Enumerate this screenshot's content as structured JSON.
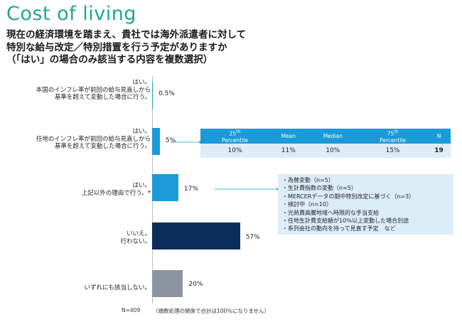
{
  "title": "Cost of living",
  "question_lines": [
    "現在の経済環境を踏まえ、貴社では海外派遣者に対して",
    "特別な給与改定／特別措置を行う予定がありますか",
    "（「はい」の場合のみ該当する内容を複数選択）"
  ],
  "chart_data": {
    "type": "bar",
    "orientation": "horizontal",
    "categories": [
      "はい。本国のインフレ率が前回の給与見直しから基準を超えて変動した場合に行う。",
      "はい。任地のインフレ率が前回の給与見直しから基準を超えて変動した場合に行う。",
      "はい。上記以外の理由で行う。*",
      "いいえ。行わない。",
      "いずれにも該当しない。"
    ],
    "category_lines": [
      [
        "はい。",
        "本国のインフレ率が前回の給与見直しから",
        "基準を超えて変動した場合に行う。"
      ],
      [
        "はい。",
        "任地のインフレ率が前回の給与見直しから",
        "基準を超えて変動した場合に行う。"
      ],
      [
        "はい。",
        "上記以外の理由で行う。*"
      ],
      [
        "いいえ。",
        "行わない。"
      ],
      [
        "いずれにも該当しない。"
      ]
    ],
    "values": [
      0.5,
      5,
      17,
      57,
      20
    ],
    "value_labels": [
      "0.5%",
      "5%",
      "17%",
      "57%",
      "20%"
    ],
    "unit": "%",
    "xlim": [
      0,
      100
    ],
    "colors": [
      "#1a9ad6",
      "#1a9ad6",
      "#1a9ad6",
      "#0b2d5c",
      "#8c959e"
    ]
  },
  "stats_table": {
    "headers": [
      {
        "main": "25",
        "sup": "th",
        "sub": "Percentile"
      },
      {
        "main": "Mean",
        "sup": "",
        "sub": ""
      },
      {
        "main": "Median",
        "sup": "",
        "sub": ""
      },
      {
        "main": "75",
        "sup": "th",
        "sub": "Percentile"
      },
      {
        "main": "N",
        "sup": "",
        "sub": ""
      }
    ],
    "values": [
      "10%",
      "11%",
      "10%",
      "15%",
      "19"
    ]
  },
  "reasons": [
    "為替変動（n=5）",
    "生計費指数の変動（n=5）",
    "MERCERデータの期中特別改定に基づく（n=3）",
    "検討中（n=10）",
    "光熱費高騰地域へ時限的な手当支給",
    "任地生計費支給額が10％以上変動した場合別途",
    "系列会社の動向を待って見直す予定　など"
  ],
  "footer": {
    "n_label": "N=409",
    "rounding_note": "（端数処理の関係で合計は100％になりません）"
  },
  "colors": {
    "title": "#1fa98a",
    "accent_blue": "#1a9ad6",
    "navy": "#0b2d5c",
    "gray": "#8c959e",
    "light_blue_bg": "#dcedf8"
  }
}
